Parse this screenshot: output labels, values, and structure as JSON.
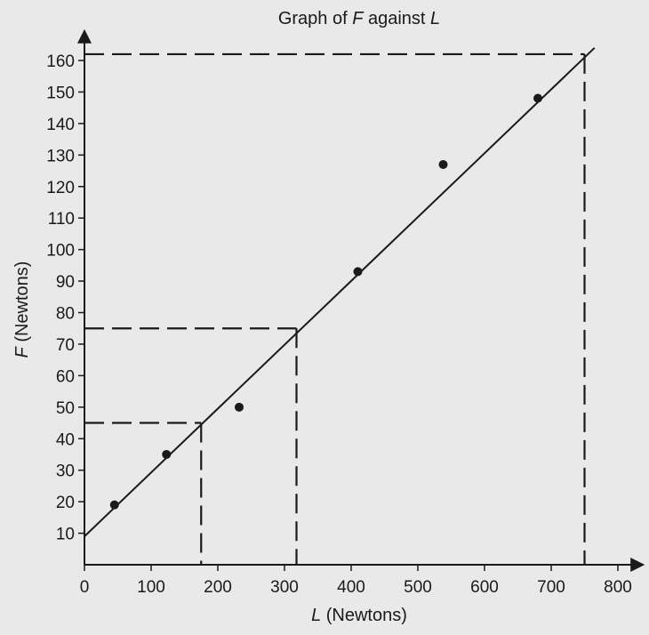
{
  "chart_data": {
    "type": "scatter",
    "title": {
      "prefix": "Graph of ",
      "var1": "F",
      "middle": " against ",
      "var2": "L"
    },
    "xlabel": {
      "var": "L",
      "unit": " (Newtons)"
    },
    "ylabel": {
      "var": "F",
      "unit": " (Newtons)"
    },
    "xlim": [
      0,
      800
    ],
    "ylim": [
      0,
      160
    ],
    "x_ticks": [
      0,
      100,
      200,
      300,
      400,
      500,
      600,
      700,
      800
    ],
    "y_ticks": [
      10,
      20,
      30,
      40,
      50,
      60,
      70,
      80,
      90,
      100,
      110,
      120,
      130,
      140,
      150,
      160
    ],
    "grid": false,
    "points": [
      {
        "x": 45,
        "y": 19
      },
      {
        "x": 123,
        "y": 35
      },
      {
        "x": 232,
        "y": 50
      },
      {
        "x": 410,
        "y": 93
      },
      {
        "x": 538,
        "y": 127
      },
      {
        "x": 680,
        "y": 148
      }
    ],
    "best_fit_line": {
      "x": [
        0,
        765
      ],
      "y": [
        9,
        164
      ]
    },
    "dashed_guides": [
      {
        "x": 175,
        "y": 45
      },
      {
        "x": 318,
        "y": 75
      },
      {
        "x": 750,
        "y": 162
      }
    ],
    "colors": {
      "background": "#e9e9ea",
      "ink": "#1a1a1a"
    }
  }
}
